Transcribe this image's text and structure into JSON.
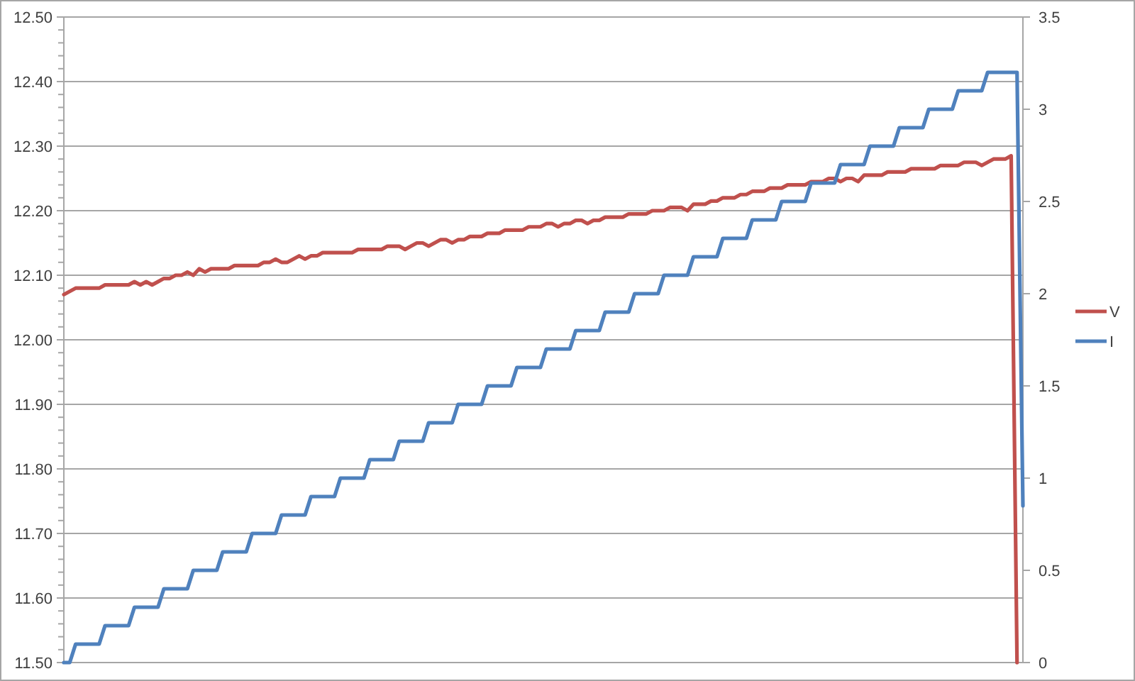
{
  "chart_data": {
    "type": "line",
    "categories": [
      null,
      null,
      null,
      null,
      null,
      null,
      null,
      null,
      null,
      null,
      null,
      null,
      null,
      null,
      null,
      null,
      null,
      null,
      null,
      null,
      null,
      null,
      null,
      null,
      null,
      null,
      null,
      null,
      null,
      null,
      null,
      null,
      null,
      null,
      null,
      null,
      null,
      null,
      null,
      null,
      null,
      null,
      null,
      null,
      null,
      null,
      null,
      null,
      null,
      null,
      null,
      null,
      null,
      null,
      null,
      null,
      null,
      null,
      null,
      null,
      null,
      null,
      null,
      null,
      null,
      null,
      null,
      null,
      null,
      null,
      null,
      null,
      null,
      null,
      null,
      null,
      null,
      null,
      null,
      null,
      null,
      null,
      null,
      null,
      null,
      null,
      null,
      null,
      null,
      null,
      null,
      null,
      null,
      null,
      null,
      null,
      null,
      null,
      null,
      null,
      null,
      null,
      null,
      null,
      null,
      null,
      null,
      null,
      null,
      null,
      null,
      null,
      null,
      null,
      null,
      null,
      null,
      null,
      null,
      null,
      null,
      null,
      null,
      null,
      null,
      null,
      null,
      null,
      null,
      null,
      null,
      null,
      null,
      null,
      null,
      null,
      null,
      null,
      null,
      null,
      null,
      null,
      null,
      null,
      null,
      null,
      null,
      null,
      null,
      null,
      null,
      null,
      null,
      null,
      null,
      null,
      null,
      null,
      null,
      null,
      null,
      null,
      null,
      null
    ],
    "series": [
      {
        "name": "V",
        "color": "#c0504d",
        "values": [
          12.07,
          12.075,
          12.08,
          12.08,
          12.08,
          12.08,
          12.08,
          12.085,
          12.085,
          12.085,
          12.085,
          12.085,
          12.09,
          12.085,
          12.09,
          12.085,
          12.09,
          12.095,
          12.095,
          12.1,
          12.1,
          12.105,
          12.1,
          12.11,
          12.105,
          12.11,
          12.11,
          12.11,
          12.11,
          12.115,
          12.115,
          12.115,
          12.115,
          12.115,
          12.12,
          12.12,
          12.125,
          12.12,
          12.12,
          12.125,
          12.13,
          12.125,
          12.13,
          12.13,
          12.135,
          12.135,
          12.135,
          12.135,
          12.135,
          12.135,
          12.14,
          12.14,
          12.14,
          12.14,
          12.14,
          12.145,
          12.145,
          12.145,
          12.14,
          12.145,
          12.15,
          12.15,
          12.145,
          12.15,
          12.155,
          12.155,
          12.15,
          12.155,
          12.155,
          12.16,
          12.16,
          12.16,
          12.165,
          12.165,
          12.165,
          12.17,
          12.17,
          12.17,
          12.17,
          12.175,
          12.175,
          12.175,
          12.18,
          12.18,
          12.175,
          12.18,
          12.18,
          12.185,
          12.185,
          12.18,
          12.185,
          12.185,
          12.19,
          12.19,
          12.19,
          12.19,
          12.195,
          12.195,
          12.195,
          12.195,
          12.2,
          12.2,
          12.2,
          12.205,
          12.205,
          12.205,
          12.2,
          12.21,
          12.21,
          12.21,
          12.215,
          12.215,
          12.22,
          12.22,
          12.22,
          12.225,
          12.225,
          12.23,
          12.23,
          12.23,
          12.235,
          12.235,
          12.235,
          12.24,
          12.24,
          12.24,
          12.24,
          12.245,
          12.245,
          12.245,
          12.25,
          12.25,
          12.245,
          12.25,
          12.25,
          12.245,
          12.255,
          12.255,
          12.255,
          12.255,
          12.26,
          12.26,
          12.26,
          12.26,
          12.265,
          12.265,
          12.265,
          12.265,
          12.265,
          12.27,
          12.27,
          12.27,
          12.27,
          12.275,
          12.275,
          12.275,
          12.27,
          12.275,
          12.28,
          12.28,
          12.28,
          12.285,
          11.5,
          null
        ]
      },
      {
        "name": "I",
        "color": "#4f81bd",
        "axis": "y2",
        "values": [
          0,
          0,
          0.1,
          0.1,
          0.1,
          0.1,
          0.1,
          0.2,
          0.2,
          0.2,
          0.2,
          0.2,
          0.3,
          0.3,
          0.3,
          0.3,
          0.3,
          0.4,
          0.4,
          0.4,
          0.4,
          0.4,
          0.5,
          0.5,
          0.5,
          0.5,
          0.5,
          0.6,
          0.6,
          0.6,
          0.6,
          0.6,
          0.7,
          0.7,
          0.7,
          0.7,
          0.7,
          0.8,
          0.8,
          0.8,
          0.8,
          0.8,
          0.9,
          0.9,
          0.9,
          0.9,
          0.9,
          1.0,
          1.0,
          1.0,
          1.0,
          1.0,
          1.1,
          1.1,
          1.1,
          1.1,
          1.1,
          1.2,
          1.2,
          1.2,
          1.2,
          1.2,
          1.3,
          1.3,
          1.3,
          1.3,
          1.3,
          1.4,
          1.4,
          1.4,
          1.4,
          1.4,
          1.5,
          1.5,
          1.5,
          1.5,
          1.5,
          1.6,
          1.6,
          1.6,
          1.6,
          1.6,
          1.7,
          1.7,
          1.7,
          1.7,
          1.7,
          1.8,
          1.8,
          1.8,
          1.8,
          1.8,
          1.9,
          1.9,
          1.9,
          1.9,
          1.9,
          2.0,
          2.0,
          2.0,
          2.0,
          2.0,
          2.1,
          2.1,
          2.1,
          2.1,
          2.1,
          2.2,
          2.2,
          2.2,
          2.2,
          2.2,
          2.3,
          2.3,
          2.3,
          2.3,
          2.3,
          2.4,
          2.4,
          2.4,
          2.4,
          2.4,
          2.5,
          2.5,
          2.5,
          2.5,
          2.5,
          2.6,
          2.6,
          2.6,
          2.6,
          2.6,
          2.7,
          2.7,
          2.7,
          2.7,
          2.7,
          2.8,
          2.8,
          2.8,
          2.8,
          2.8,
          2.9,
          2.9,
          2.9,
          2.9,
          2.9,
          3.0,
          3.0,
          3.0,
          3.0,
          3.0,
          3.1,
          3.1,
          3.1,
          3.1,
          3.1,
          3.2,
          3.2,
          3.2,
          3.2,
          3.2,
          3.2,
          0.85
        ]
      }
    ],
    "ylim": [
      11.5,
      12.5
    ],
    "yticks": [
      {
        "value": 11.5,
        "label": "11.50"
      },
      {
        "value": 11.52,
        "label": null
      },
      {
        "value": 11.54,
        "label": null
      },
      {
        "value": 11.56,
        "label": null
      },
      {
        "value": 11.58,
        "label": null
      },
      {
        "value": 11.6,
        "label": "11.60"
      },
      {
        "value": 11.62,
        "label": null
      },
      {
        "value": 11.64,
        "label": null
      },
      {
        "value": 11.66,
        "label": null
      },
      {
        "value": 11.68,
        "label": null
      },
      {
        "value": 11.7,
        "label": "11.70"
      },
      {
        "value": 11.72,
        "label": null
      },
      {
        "value": 11.74,
        "label": null
      },
      {
        "value": 11.76,
        "label": null
      },
      {
        "value": 11.78,
        "label": null
      },
      {
        "value": 11.8,
        "label": "11.80"
      },
      {
        "value": 11.82,
        "label": null
      },
      {
        "value": 11.84,
        "label": null
      },
      {
        "value": 11.86,
        "label": null
      },
      {
        "value": 11.88,
        "label": null
      },
      {
        "value": 11.9,
        "label": "11.90"
      },
      {
        "value": 11.92,
        "label": null
      },
      {
        "value": 11.94,
        "label": null
      },
      {
        "value": 11.96,
        "label": null
      },
      {
        "value": 11.98,
        "label": null
      },
      {
        "value": 12.0,
        "label": "12.00"
      },
      {
        "value": 12.02,
        "label": null
      },
      {
        "value": 12.04,
        "label": null
      },
      {
        "value": 12.06,
        "label": null
      },
      {
        "value": 12.08,
        "label": null
      },
      {
        "value": 12.1,
        "label": "12.10"
      },
      {
        "value": 12.12,
        "label": null
      },
      {
        "value": 12.14,
        "label": null
      },
      {
        "value": 12.16,
        "label": null
      },
      {
        "value": 12.18,
        "label": null
      },
      {
        "value": 12.2,
        "label": "12.20"
      },
      {
        "value": 12.22,
        "label": null
      },
      {
        "value": 12.24,
        "label": null
      },
      {
        "value": 12.26,
        "label": null
      },
      {
        "value": 12.28,
        "label": null
      },
      {
        "value": 12.3,
        "label": "12.30"
      },
      {
        "value": 12.32,
        "label": null
      },
      {
        "value": 12.34,
        "label": null
      },
      {
        "value": 12.36,
        "label": null
      },
      {
        "value": 12.38,
        "label": null
      },
      {
        "value": 12.4,
        "label": "12.40"
      },
      {
        "value": 12.42,
        "label": null
      },
      {
        "value": 12.44,
        "label": null
      },
      {
        "value": 12.46,
        "label": null
      },
      {
        "value": 12.48,
        "label": null
      },
      {
        "value": 12.5,
        "label": "12.50"
      }
    ],
    "y2lim": [
      0,
      3.5
    ],
    "y2ticks": [
      0,
      0.5,
      1,
      1.5,
      2,
      2.5,
      3,
      3.5
    ],
    "grid": "y",
    "legend": "right"
  }
}
